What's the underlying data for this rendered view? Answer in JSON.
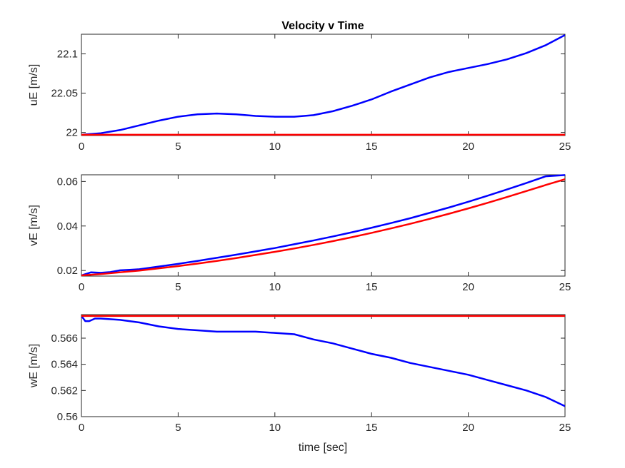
{
  "chart_data": {
    "type": "line",
    "title": "Velocity v Time",
    "xlabel": "time [sec]",
    "subplots": [
      {
        "ylabel": "uE [m/s]",
        "xlim": [
          0,
          25
        ],
        "ylim": [
          21.996,
          22.125
        ],
        "xticks": [
          "0",
          "5",
          "10",
          "15",
          "20",
          "25"
        ],
        "yticks": [
          "22",
          "22.05",
          "22.1"
        ],
        "ytick_values": [
          22.0,
          22.05,
          22.1
        ],
        "series": [
          {
            "color": "#0000ff",
            "x": [
              0,
              1,
              2,
              3,
              4,
              5,
              6,
              7,
              8,
              9,
              10,
              11,
              12,
              13,
              14,
              15,
              16,
              17,
              18,
              19,
              20,
              21,
              22,
              23,
              24,
              25
            ],
            "y": [
              21.997,
              21.999,
              22.003,
              22.009,
              22.015,
              22.02,
              22.023,
              22.024,
              22.023,
              22.021,
              22.02,
              22.02,
              22.022,
              22.027,
              22.034,
              22.042,
              22.052,
              22.061,
              22.07,
              22.077,
              22.082,
              22.087,
              22.093,
              22.101,
              22.111,
              22.124
            ]
          },
          {
            "color": "#ff0000",
            "x": [
              0,
              25
            ],
            "y": [
              21.997,
              21.997
            ]
          }
        ]
      },
      {
        "ylabel": "vE [m/s]",
        "xlim": [
          0,
          25
        ],
        "ylim": [
          0.0175,
          0.063
        ],
        "xticks": [
          "0",
          "5",
          "10",
          "15",
          "20",
          "25"
        ],
        "yticks": [
          "0.02",
          "0.04",
          "0.06"
        ],
        "ytick_values": [
          0.02,
          0.04,
          0.06
        ],
        "series": [
          {
            "color": "#0000ff",
            "x": [
              0,
              0.5,
              1,
              1.5,
              2,
              2.5,
              3,
              4,
              5,
              6,
              7,
              8,
              9,
              10,
              11,
              12,
              13,
              14,
              15,
              16,
              17,
              18,
              19,
              20,
              21,
              22,
              23,
              24,
              25
            ],
            "y": [
              0.0178,
              0.0192,
              0.019,
              0.0193,
              0.0201,
              0.0203,
              0.0206,
              0.0218,
              0.023,
              0.0243,
              0.0257,
              0.0271,
              0.0286,
              0.0301,
              0.0318,
              0.0335,
              0.0353,
              0.0372,
              0.0392,
              0.0413,
              0.0435,
              0.0459,
              0.0483,
              0.0509,
              0.0536,
              0.0564,
              0.0593,
              0.0623,
              0.0629
            ]
          },
          {
            "color": "#ff0000",
            "x": [
              0,
              1,
              2,
              3,
              4,
              5,
              6,
              7,
              8,
              9,
              10,
              11,
              12,
              13,
              14,
              15,
              16,
              17,
              18,
              19,
              20,
              21,
              22,
              23,
              24,
              25
            ],
            "y": [
              0.0178,
              0.0184,
              0.0192,
              0.02,
              0.021,
              0.022,
              0.0231,
              0.0243,
              0.0256,
              0.027,
              0.0284,
              0.0299,
              0.0315,
              0.0332,
              0.035,
              0.0369,
              0.0389,
              0.041,
              0.0432,
              0.0455,
              0.0479,
              0.0504,
              0.053,
              0.0557,
              0.0584,
              0.061
            ]
          }
        ]
      },
      {
        "ylabel": "wE [m/s]",
        "xlim": [
          0,
          25
        ],
        "ylim": [
          0.56,
          0.5678
        ],
        "xticks": [
          "0",
          "5",
          "10",
          "15",
          "20",
          "25"
        ],
        "yticks": [
          "0.56",
          "0.562",
          "0.564",
          "0.566"
        ],
        "ytick_values": [
          0.56,
          0.562,
          0.564,
          0.566
        ],
        "series": [
          {
            "color": "#0000ff",
            "x": [
              0,
              0.2,
              0.4,
              0.7,
              1,
              2,
              3,
              4,
              5,
              6,
              7,
              8,
              9,
              10,
              11,
              12,
              13,
              14,
              15,
              16,
              17,
              18,
              19,
              20,
              21,
              22,
              23,
              24,
              25
            ],
            "y": [
              0.5677,
              0.5673,
              0.5673,
              0.5675,
              0.5675,
              0.5674,
              0.5672,
              0.5669,
              0.5667,
              0.5666,
              0.5665,
              0.5665,
              0.5665,
              0.5664,
              0.5663,
              0.5659,
              0.5656,
              0.5652,
              0.5648,
              0.5645,
              0.5641,
              0.5638,
              0.5635,
              0.5632,
              0.5628,
              0.5624,
              0.562,
              0.5615,
              0.5608
            ]
          },
          {
            "color": "#ff0000",
            "x": [
              0,
              25
            ],
            "y": [
              0.5677,
              0.5677
            ]
          }
        ]
      }
    ]
  }
}
